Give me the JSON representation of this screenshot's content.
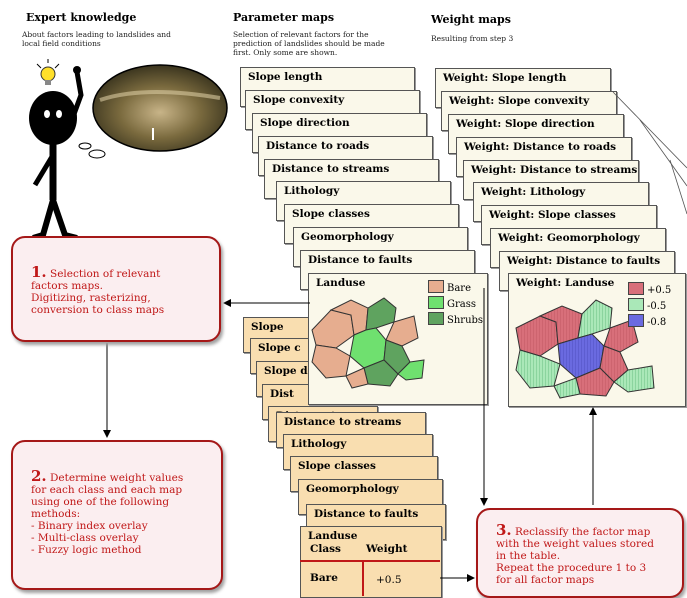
{
  "headers": {
    "expert_title": "Expert knowledge",
    "expert_sub": "About factors leading to landslides and local field conditions",
    "param_title": "Parameter maps",
    "param_sub": "Selection of relevant factors for the prediction of landslides should be made first. Only some are shown.",
    "weight_title": "Weight maps",
    "weight_sub": "Resulting from step 3"
  },
  "param_cards": [
    "Slope length",
    "Slope convexity",
    "Slope direction",
    "Distance to roads",
    "Distance to streams",
    "Lithology",
    "Slope classes",
    "Geomorphology",
    "Distance to faults",
    "Landuse"
  ],
  "weight_cards": [
    "Weight: Slope length",
    "Weight: Slope convexity",
    "Weight: Slope direction",
    "Weight: Distance to roads",
    "Weight: Distance to streams",
    "Weight: Lithology",
    "Weight: Slope classes",
    "Weight: Geomorphology",
    "Weight: Distance to faults",
    "Weight: Landuse"
  ],
  "table_cards": [
    "Slope",
    "Slope c",
    "Slope d",
    "Dist",
    "Distance to",
    "Distance to streams",
    "Lithology",
    "Slope classes",
    "Geomorphology",
    "Distance to faults",
    "Landuse"
  ],
  "table": {
    "col_class": "Class",
    "col_weight": "Weight",
    "row_class": "Bare",
    "row_weight": "+0.5"
  },
  "landuse_legend": [
    {
      "label": "Bare",
      "color": "#e6ad8f"
    },
    {
      "label": "Grass",
      "color": "#6fe06f"
    },
    {
      "label": "Shrubs",
      "color": "#5fa35f"
    }
  ],
  "weight_legend": [
    {
      "label": "+0.5",
      "color": "#d86f7a"
    },
    {
      "label": "-0.5",
      "color": "#aae8b8"
    },
    {
      "label": "-0.8",
      "color": "#6a6ae0"
    }
  ],
  "steps": {
    "s1_num": "1.",
    "s1_lines": [
      "Selection of relevant",
      "factors maps.",
      "Digitizing, rasterizing,",
      "conversion to class maps"
    ],
    "s2_num": "2.",
    "s2_lines": [
      "Determine weight values",
      "for each class and each map",
      "using one of the following",
      "methods:",
      "- Binary index overlay",
      "- Multi-class overlay",
      "- Fuzzy logic method"
    ],
    "s3_num": "3.",
    "s3_lines": [
      "Reclassify the factor map",
      "with the weight values stored",
      "in the table.",
      "Repeat the procedure 1 to 3",
      "for all factor maps"
    ]
  },
  "colors": {
    "step_border": "#a51818",
    "step_text": "#c01818",
    "card_bg": "#faf8ea",
    "table_bg": "#f9deb0"
  },
  "icons": [
    "stick-figure-icon",
    "lightbulb-icon",
    "photo-icon"
  ]
}
